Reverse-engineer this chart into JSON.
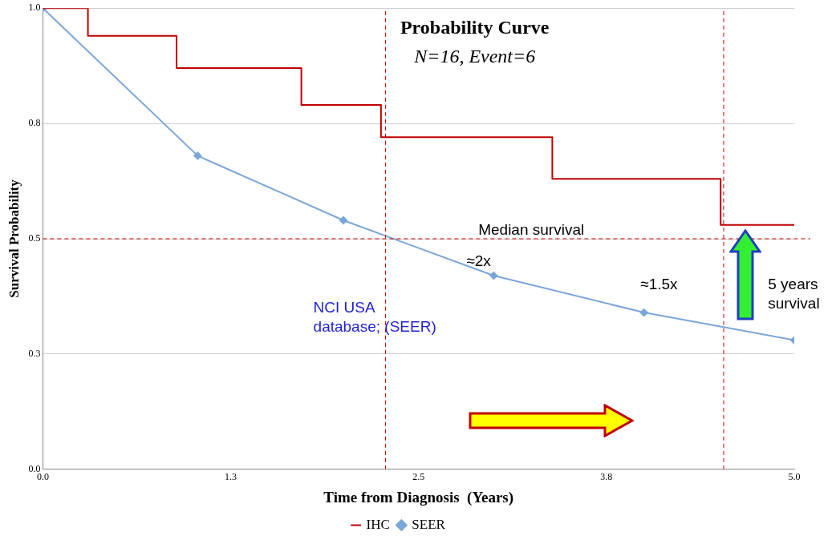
{
  "chart_data": {
    "type": "step",
    "title": "Probability Curve",
    "subtitle": "N=16, Event=6",
    "xlabel": "Time from Diagnosis  (Years)",
    "ylabel": "Survival Probability",
    "xlim": [
      0,
      5
    ],
    "xticks": [
      {
        "value": 0,
        "label": "0.0"
      },
      {
        "value": 1.25,
        "label": "1.3"
      },
      {
        "value": 2.5,
        "label": "2.5"
      },
      {
        "value": 3.75,
        "label": "3.8"
      },
      {
        "value": 5,
        "label": "5.0"
      }
    ],
    "ylim": [
      0,
      1
    ],
    "yticks": [
      {
        "value": 0,
        "label": "0.0"
      },
      {
        "value": 0.25,
        "label": "0.3"
      },
      {
        "value": 0.5,
        "label": "0.5"
      },
      {
        "value": 0.75,
        "label": "0.8"
      },
      {
        "value": 1,
        "label": "1.0"
      }
    ],
    "grid": "y",
    "legend": "bottom",
    "series": [
      {
        "name": "IHC",
        "color": "#c00000",
        "marker": "none",
        "x": [
          0,
          0.3,
          0.89,
          1.72,
          2.25,
          3.39,
          4.51,
          5
        ],
        "values": [
          1,
          0.94,
          0.87,
          0.79,
          0.72,
          0.63,
          0.53,
          0.53
        ]
      },
      {
        "name": "SEER",
        "type": "line",
        "color": "#7aa6d8",
        "marker": "diamond",
        "x": [
          0,
          1.03,
          2.0,
          3.0,
          4.0,
          5.0
        ],
        "values": [
          1,
          0.68,
          0.54,
          0.42,
          0.34,
          0.28
        ]
      }
    ],
    "ref_lines": [
      {
        "axis": "y",
        "value": 0.5,
        "label": "Median survival",
        "color": "#c00000",
        "line_style": "dashed"
      },
      {
        "axis": "x",
        "value": 2.28,
        "color": "#c00000",
        "line_style": "dashed"
      },
      {
        "axis": "x",
        "value": 4.53,
        "color": "#c00000",
        "line_style": "dashed"
      }
    ],
    "annotations": [
      "≈2x",
      "≈1.5x",
      "5 years survival",
      "NCI USA database; (SEER)"
    ]
  }
}
